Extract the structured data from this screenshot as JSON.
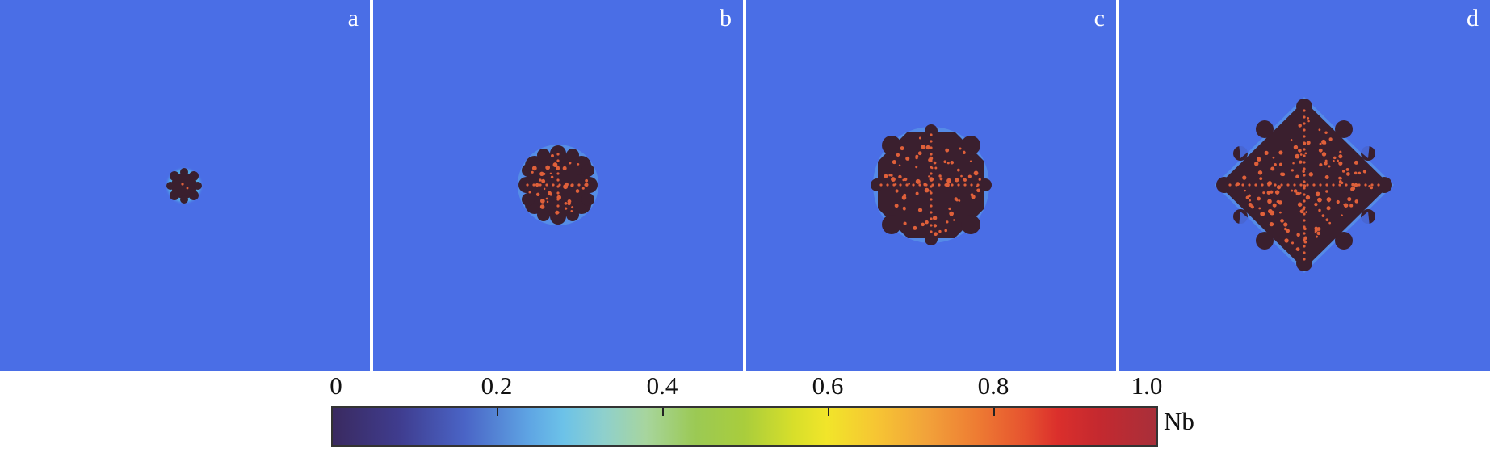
{
  "panels": [
    {
      "id": "a",
      "label": "a"
    },
    {
      "id": "b",
      "label": "b"
    },
    {
      "id": "c",
      "label": "c"
    },
    {
      "id": "d",
      "label": "d"
    }
  ],
  "colorbar": {
    "label": "Nb",
    "ticks": [
      "0",
      "0.2",
      "0.4",
      "0.6",
      "0.8",
      "1.0"
    ],
    "colors": {
      "matrix": "#4a6ee6",
      "precipitate": "#3a1f2e",
      "spot": "#e0603a"
    }
  }
}
